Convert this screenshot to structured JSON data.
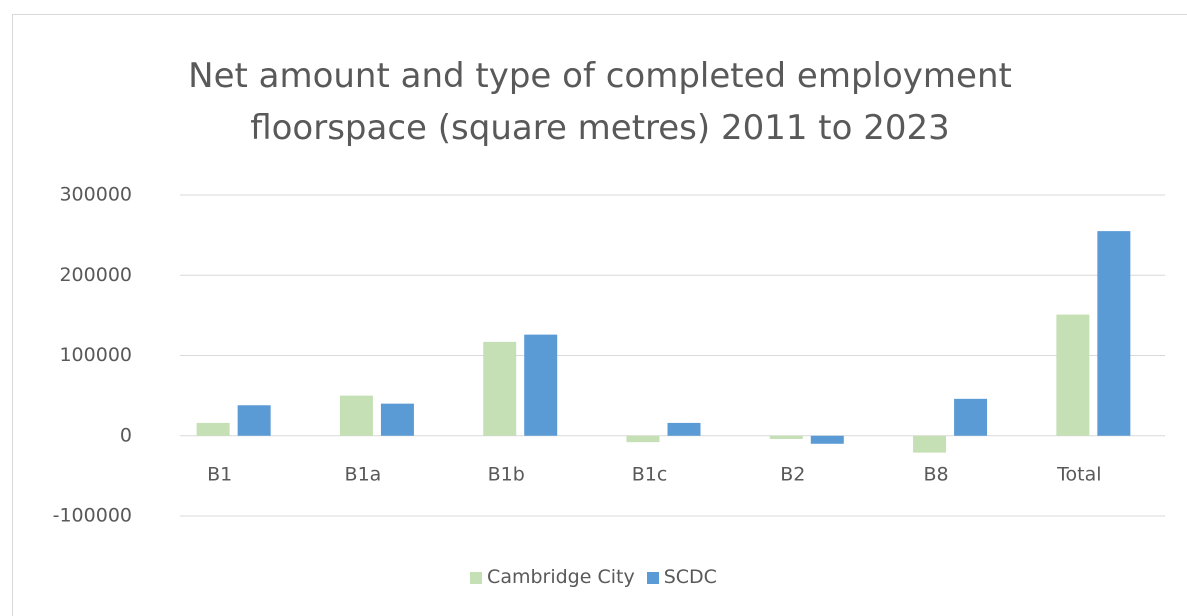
{
  "chart_data": {
    "type": "bar",
    "title": "Net amount and type of completed employment floorspace (square metres) 2011 to 2023",
    "categories": [
      "B1",
      "B1a",
      "B1b",
      "B1c",
      "B2",
      "B8",
      "Total"
    ],
    "series": [
      {
        "name": "Cambridge City",
        "color": "#c5e0b4",
        "values": [
          16000,
          50000,
          117000,
          -8000,
          -4000,
          -21000,
          151000
        ]
      },
      {
        "name": "SCDC",
        "color": "#5b9bd5",
        "values": [
          38000,
          40000,
          126000,
          16000,
          -10000,
          46000,
          255000
        ]
      }
    ],
    "ylim": [
      -100000,
      300000
    ],
    "yticks": [
      -100000,
      0,
      100000,
      200000,
      300000
    ],
    "grid": true,
    "legend": "bottom"
  }
}
